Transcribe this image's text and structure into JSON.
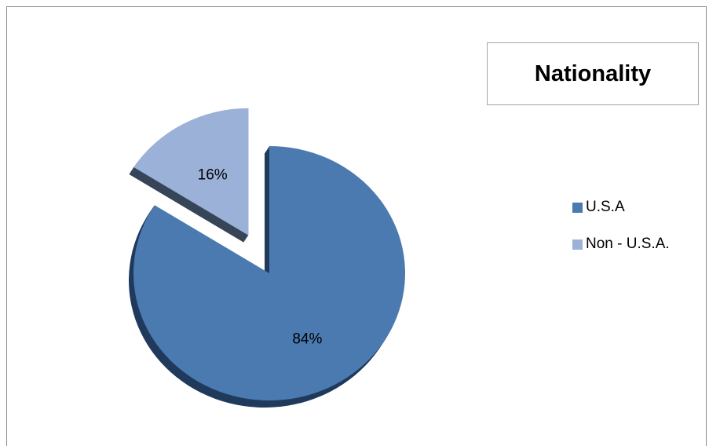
{
  "chart_data": {
    "type": "pie",
    "title": "Nationality",
    "slices": [
      {
        "label": "U.S.A",
        "value": 84,
        "display": "84%",
        "color": "#4a7ab0",
        "side_color": "#203a5c",
        "exploded": false
      },
      {
        "label": "Non - U.S.A.",
        "value": 16,
        "display": "16%",
        "color": "#9bb1d8",
        "side_color": "#374559",
        "exploded": true
      }
    ],
    "legend_position": "right",
    "style": "3d-exploded"
  }
}
